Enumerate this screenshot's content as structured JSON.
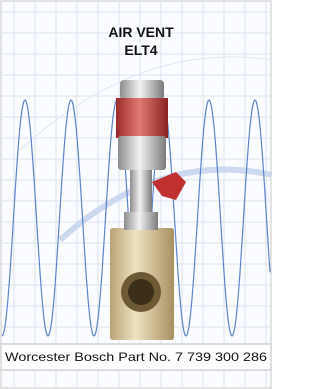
{
  "title": {
    "line1": "AIR VENT",
    "line2": "ELT4"
  },
  "caption": "Worcester Bosch Part No. 7 739 300 286"
}
